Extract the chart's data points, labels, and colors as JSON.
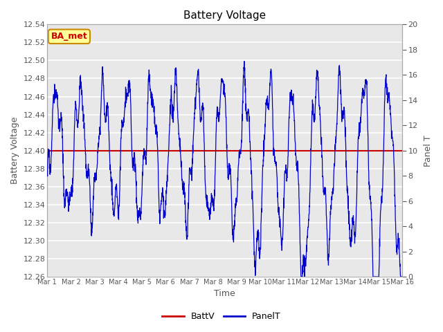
{
  "title": "Battery Voltage",
  "xlabel": "Time",
  "ylabel_left": "Battery Voltage",
  "ylabel_right": "Panel T",
  "ylim_left": [
    12.26,
    12.54
  ],
  "ylim_right": [
    0,
    20
  ],
  "yticks_left": [
    12.26,
    12.28,
    12.3,
    12.32,
    12.34,
    12.36,
    12.38,
    12.4,
    12.42,
    12.44,
    12.46,
    12.48,
    12.5,
    12.52,
    12.54
  ],
  "yticks_right": [
    0,
    2,
    4,
    6,
    8,
    10,
    12,
    14,
    16,
    18,
    20
  ],
  "xtick_labels": [
    "Mar 1",
    "Mar 2",
    "Mar 3",
    "Mar 4",
    "Mar 5",
    "Mar 6",
    "Mar 7",
    "Mar 8",
    "Mar 9",
    "Mar 10",
    "Mar 11",
    "Mar 12",
    "Mar 13",
    "Mar 14",
    "Mar 15",
    "Mar 16"
  ],
  "batt_v": 12.4,
  "background_color": "#e8e8e8",
  "grid_color": "#ffffff",
  "panel_T_color": "#0000cc",
  "batt_V_color": "#cc0000",
  "label_color": "#555555",
  "annotation_text": "BA_met",
  "annotation_bg": "#ffff99",
  "annotation_border": "#cc8800",
  "figsize": [
    6.4,
    4.8
  ],
  "dpi": 100
}
